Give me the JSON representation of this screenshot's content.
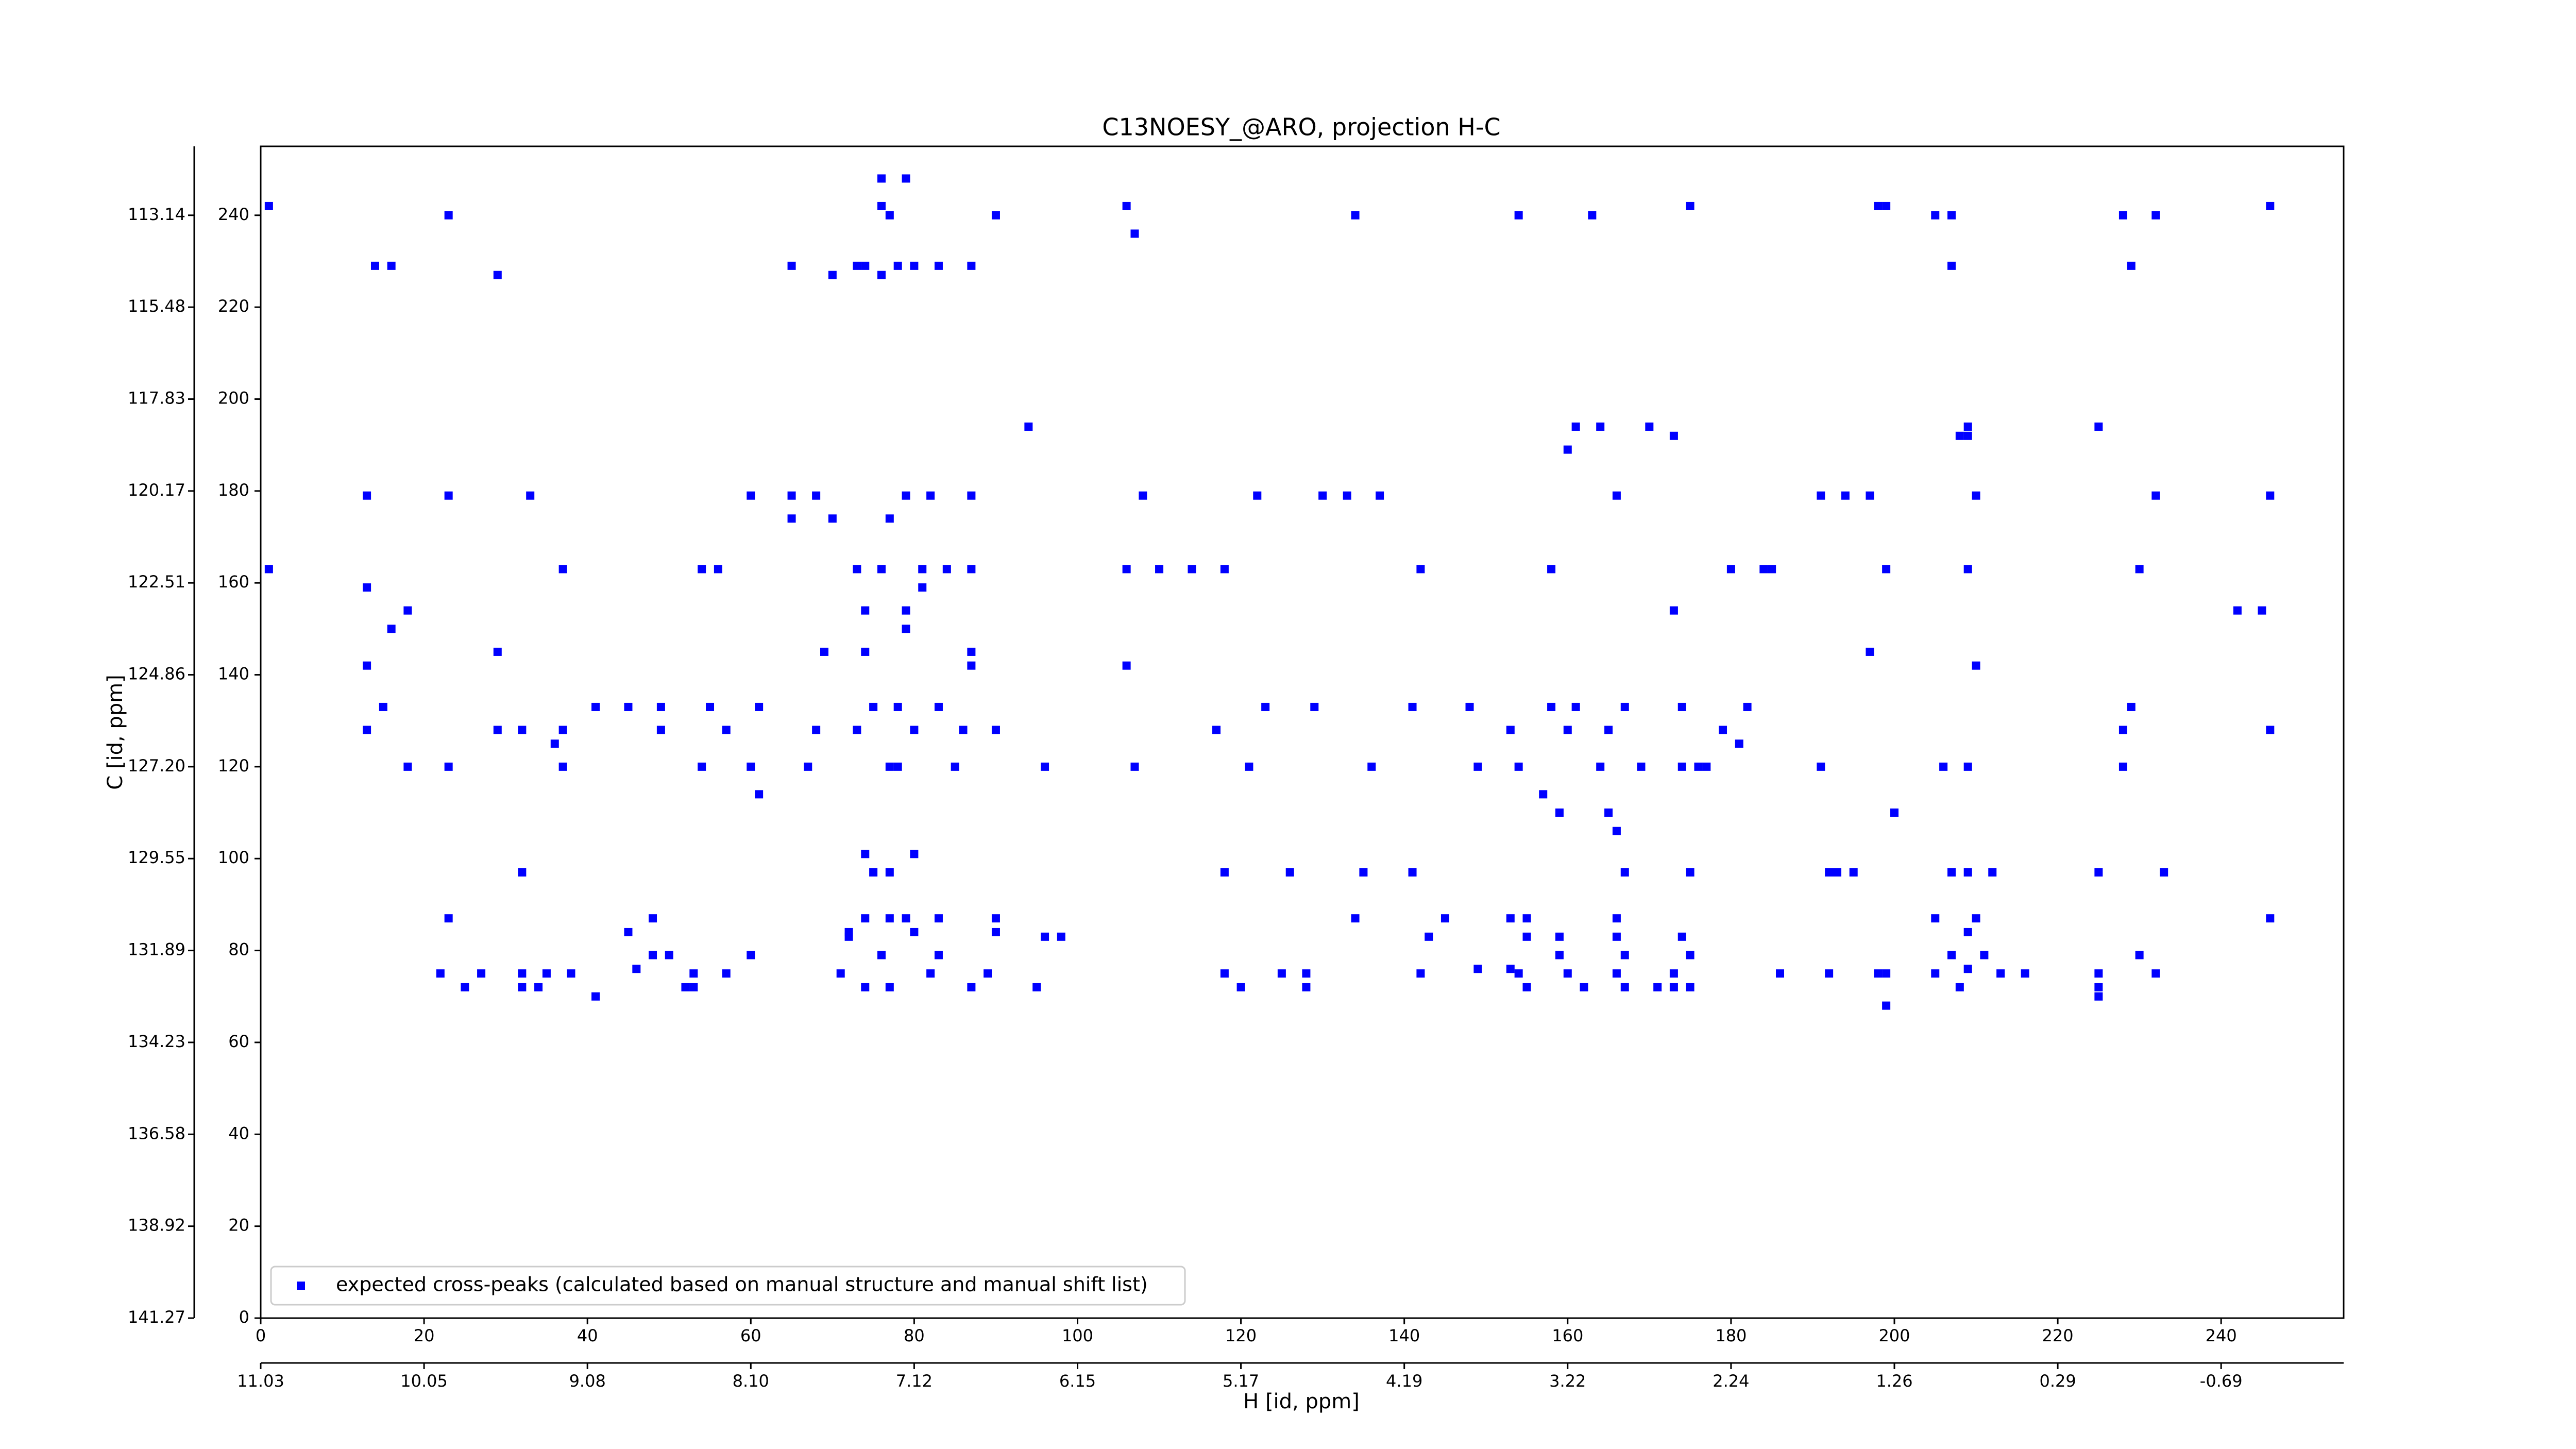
{
  "chart_data": {
    "type": "scatter",
    "title": "C13NOESY_@ARO, projection H-C",
    "xlabel": "H [id, ppm]",
    "ylabel": "C [id, ppm]",
    "xlim": [
      0,
      255
    ],
    "ylim": [
      0,
      255
    ],
    "xticks": [
      0,
      20,
      40,
      60,
      80,
      100,
      120,
      140,
      160,
      180,
      200,
      220,
      240
    ],
    "yticks": [
      0,
      20,
      40,
      60,
      80,
      100,
      120,
      140,
      160,
      180,
      200,
      220,
      240
    ],
    "xticks_ppm": [
      {
        "value": 0,
        "label": "11.03"
      },
      {
        "value": 20,
        "label": "10.05"
      },
      {
        "value": 40,
        "label": "9.08"
      },
      {
        "value": 60,
        "label": "8.10"
      },
      {
        "value": 80,
        "label": "7.12"
      },
      {
        "value": 100,
        "label": "6.15"
      },
      {
        "value": 120,
        "label": "5.17"
      },
      {
        "value": 140,
        "label": "4.19"
      },
      {
        "value": 160,
        "label": "3.22"
      },
      {
        "value": 180,
        "label": "2.24"
      },
      {
        "value": 200,
        "label": "1.26"
      },
      {
        "value": 220,
        "label": "0.29"
      },
      {
        "value": 240,
        "label": "-0.69"
      }
    ],
    "yticks_ppm": [
      {
        "value": 0,
        "label": "141.27"
      },
      {
        "value": 20,
        "label": "138.92"
      },
      {
        "value": 40,
        "label": "136.58"
      },
      {
        "value": 60,
        "label": "134.23"
      },
      {
        "value": 80,
        "label": "131.89"
      },
      {
        "value": 100,
        "label": "129.55"
      },
      {
        "value": 120,
        "label": "127.20"
      },
      {
        "value": 140,
        "label": "124.86"
      },
      {
        "value": 160,
        "label": "122.51"
      },
      {
        "value": 180,
        "label": "120.17"
      },
      {
        "value": 200,
        "label": "117.83"
      },
      {
        "value": 220,
        "label": "115.48"
      },
      {
        "value": 240,
        "label": "113.14"
      }
    ],
    "legend": "lower left",
    "series": [
      {
        "name": "expected cross-peaks (calculated based on manual structure and manual shift list)",
        "color": "#0000ff",
        "x": [
          76,
          79,
          1,
          76,
          106,
          175,
          198,
          199,
          246,
          23,
          77,
          90,
          134,
          154,
          163,
          205,
          207,
          228,
          232,
          107,
          14,
          16,
          65,
          73,
          74,
          78,
          80,
          83,
          87,
          207,
          229,
          29,
          70,
          76,
          94,
          161,
          164,
          170,
          209,
          225,
          173,
          209,
          208,
          160,
          13,
          23,
          33,
          60,
          65,
          68,
          79,
          82,
          87,
          108,
          122,
          130,
          133,
          137,
          166,
          191,
          194,
          197,
          210,
          232,
          246,
          65,
          70,
          77,
          1,
          37,
          54,
          56,
          73,
          76,
          81,
          84,
          87,
          106,
          110,
          114,
          118,
          142,
          158,
          180,
          184,
          185,
          199,
          209,
          230,
          13,
          81,
          18,
          74,
          79,
          173,
          242,
          245,
          16,
          79,
          29,
          69,
          74,
          87,
          197,
          13,
          87,
          106,
          210,
          15,
          41,
          45,
          49,
          55,
          61,
          75,
          78,
          83,
          123,
          129,
          141,
          148,
          158,
          161,
          167,
          174,
          182,
          229,
          13,
          29,
          32,
          37,
          49,
          57,
          68,
          73,
          80,
          86,
          90,
          117,
          153,
          160,
          165,
          179,
          228,
          246,
          36,
          181,
          18,
          23,
          37,
          54,
          60,
          67,
          77,
          78,
          85,
          96,
          107,
          121,
          136,
          149,
          154,
          164,
          169,
          174,
          176,
          177,
          191,
          206,
          209,
          228,
          61,
          157,
          159,
          165,
          200,
          166,
          74,
          80,
          32,
          75,
          77,
          118,
          126,
          135,
          141,
          167,
          175,
          192,
          193,
          195,
          207,
          209,
          212,
          225,
          233,
          23,
          48,
          74,
          77,
          79,
          83,
          90,
          134,
          145,
          153,
          155,
          166,
          205,
          210,
          246,
          45,
          72,
          80,
          90,
          209,
          72,
          96,
          98,
          143,
          155,
          159,
          166,
          174,
          48,
          50,
          60,
          76,
          83,
          159,
          167,
          175,
          207,
          211,
          230,
          46,
          149,
          153,
          209,
          22,
          27,
          32,
          35,
          38,
          53,
          57,
          71,
          82,
          89,
          118,
          125,
          128,
          142,
          154,
          160,
          166,
          173,
          186,
          192,
          198,
          199,
          205,
          213,
          216,
          232,
          225,
          25,
          32,
          34,
          52,
          53,
          74,
          77,
          87,
          95,
          120,
          128,
          155,
          162,
          167,
          171,
          173,
          175,
          208,
          225,
          41,
          225,
          199
        ],
        "y": [
          248,
          248,
          242,
          242,
          242,
          242,
          242,
          242,
          242,
          240,
          240,
          240,
          240,
          240,
          240,
          240,
          240,
          240,
          240,
          236,
          229,
          229,
          229,
          229,
          229,
          229,
          229,
          229,
          229,
          229,
          229,
          227,
          227,
          227,
          194,
          194,
          194,
          194,
          194,
          194,
          192,
          192,
          192,
          189,
          179,
          179,
          179,
          179,
          179,
          179,
          179,
          179,
          179,
          179,
          179,
          179,
          179,
          179,
          179,
          179,
          179,
          179,
          179,
          179,
          179,
          174,
          174,
          174,
          163,
          163,
          163,
          163,
          163,
          163,
          163,
          163,
          163,
          163,
          163,
          163,
          163,
          163,
          163,
          163,
          163,
          163,
          163,
          163,
          163,
          159,
          159,
          154,
          154,
          154,
          154,
          154,
          154,
          150,
          150,
          145,
          145,
          145,
          145,
          145,
          142,
          142,
          142,
          142,
          133,
          133,
          133,
          133,
          133,
          133,
          133,
          133,
          133,
          133,
          133,
          133,
          133,
          133,
          133,
          133,
          133,
          133,
          133,
          128,
          128,
          128,
          128,
          128,
          128,
          128,
          128,
          128,
          128,
          128,
          128,
          128,
          128,
          128,
          128,
          128,
          128,
          125,
          125,
          120,
          120,
          120,
          120,
          120,
          120,
          120,
          120,
          120,
          120,
          120,
          120,
          120,
          120,
          120,
          120,
          120,
          120,
          120,
          120,
          120,
          120,
          120,
          120,
          114,
          114,
          110,
          110,
          110,
          106,
          101,
          101,
          97,
          97,
          97,
          97,
          97,
          97,
          97,
          97,
          97,
          97,
          97,
          97,
          97,
          97,
          97,
          97,
          97,
          87,
          87,
          87,
          87,
          87,
          87,
          87,
          87,
          87,
          87,
          87,
          87,
          87,
          87,
          87,
          84,
          84,
          84,
          84,
          84,
          83,
          83,
          83,
          83,
          83,
          83,
          83,
          83,
          79,
          79,
          79,
          79,
          79,
          79,
          79,
          79,
          79,
          79,
          79,
          76,
          76,
          76,
          76,
          75,
          75,
          75,
          75,
          75,
          75,
          75,
          75,
          75,
          75,
          75,
          75,
          75,
          75,
          75,
          75,
          75,
          75,
          75,
          75,
          75,
          75,
          75,
          75,
          75,
          75,
          75,
          72,
          72,
          72,
          72,
          72,
          72,
          72,
          72,
          72,
          72,
          72,
          72,
          72,
          72,
          72,
          72,
          72,
          72,
          72,
          70,
          70,
          68
        ]
      }
    ]
  }
}
